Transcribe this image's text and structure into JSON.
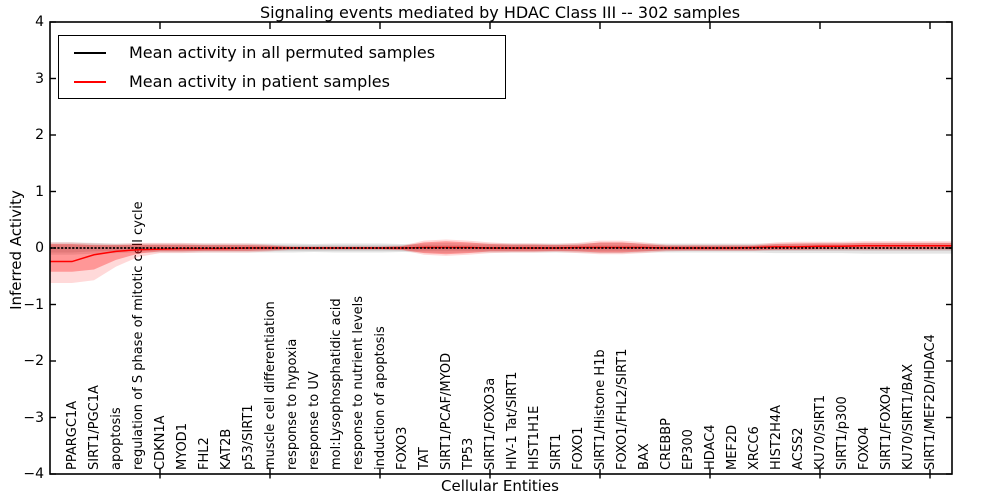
{
  "title": "Signaling events mediated by HDAC Class III -- 302 samples",
  "chart_data": {
    "type": "line",
    "title": "Signaling events mediated by HDAC Class III -- 302 samples",
    "xlabel": "Cellular Entities",
    "ylabel": "Inferred Activity",
    "ylim": [
      -4,
      4
    ],
    "yticks": [
      4,
      3,
      2,
      1,
      0,
      -1,
      -2,
      -3,
      -4
    ],
    "xtick_interval": 5,
    "grid": false,
    "legend_position": "upper left",
    "legend": [
      {
        "label": "Mean activity in all permuted samples",
        "color": "#000000"
      },
      {
        "label": "Mean activity in patient samples",
        "color": "#ff0000"
      }
    ],
    "categories": [
      "PPARGC1A",
      "SIRT1/PGC1A",
      "apoptosis",
      "regulation of S phase of mitotic cell cycle",
      "CDKN1A",
      "MYOD1",
      "FHL2",
      "KAT2B",
      "p53/SIRT1",
      "muscle cell differentiation",
      "response to hypoxia",
      "response to UV",
      "mol:Lysophosphatidic acid",
      "response to nutrient levels",
      "induction of apoptosis",
      "FOXO3",
      "TAT",
      "SIRT1/PCAF/MYOD",
      "TP53",
      "SIRT1/FOXO3a",
      "HIV-1 Tat/SIRT1",
      "HIST1H1E",
      "SIRT1",
      "FOXO1",
      "SIRT1/Histone H1b",
      "FOXO1/FHL2/SIRT1",
      "BAX",
      "CREBBP",
      "EP300",
      "HDAC4",
      "MEF2D",
      "XRCC6",
      "HIST2H4A",
      "ACSS2",
      "KU70/SIRT1",
      "SIRT1/p300",
      "FOXO4",
      "SIRT1/FOXO4",
      "KU70/SIRT1/BAX",
      "SIRT1/MEF2D/HDAC4"
    ],
    "series": [
      {
        "name": "Mean activity in all permuted samples",
        "color": "#000000",
        "style": "dense-markers",
        "values": [
          0,
          0,
          0,
          0,
          0,
          0,
          0,
          0,
          0,
          0,
          0,
          0,
          0,
          0,
          0,
          0,
          0,
          0,
          0,
          0,
          0,
          0,
          0,
          0,
          0,
          0,
          0,
          0,
          0,
          0,
          0,
          0,
          0,
          0,
          0,
          0,
          0,
          0,
          0,
          0
        ]
      },
      {
        "name": "Mean activity in patient samples",
        "color": "#ff0000",
        "style": "solid",
        "values": [
          -0.24,
          -0.12,
          -0.06,
          -0.03,
          -0.02,
          -0.01,
          -0.01,
          -0.01,
          0,
          0,
          0,
          0,
          0,
          0,
          0,
          0,
          0.01,
          0.01,
          0.01,
          0,
          0,
          0,
          0,
          0.01,
          0.01,
          0.01,
          0.01,
          0,
          0,
          0,
          0,
          0.01,
          0.02,
          0.02,
          0.03,
          0.03,
          0.04,
          0.04,
          0.04,
          0.04
        ]
      }
    ],
    "bands": [
      {
        "name": "permuted-band-outer",
        "color": "rgba(90,90,90,0.16)",
        "top": [
          0.1,
          0.09,
          0.08,
          0.08,
          0.08,
          0.08,
          0.08,
          0.08,
          0.08,
          0.08,
          0.08,
          0.07,
          0.08,
          0.08,
          0.08,
          0.07,
          0.08,
          0.09,
          0.08,
          0.08,
          0.08,
          0.08,
          0.08,
          0.08,
          0.09,
          0.09,
          0.08,
          0.08,
          0.08,
          0.08,
          0.08,
          0.08,
          0.08,
          0.08,
          0.09,
          0.09,
          0.09,
          0.09,
          0.09,
          0.09
        ],
        "bottom": [
          -0.12,
          -0.1,
          -0.09,
          -0.08,
          -0.08,
          -0.08,
          -0.08,
          -0.08,
          -0.08,
          -0.08,
          -0.08,
          -0.07,
          -0.08,
          -0.08,
          -0.08,
          -0.07,
          -0.08,
          -0.09,
          -0.08,
          -0.08,
          -0.08,
          -0.08,
          -0.08,
          -0.08,
          -0.09,
          -0.09,
          -0.08,
          -0.08,
          -0.08,
          -0.08,
          -0.08,
          -0.08,
          -0.09,
          -0.09,
          -0.09,
          -0.09,
          -0.1,
          -0.1,
          -0.1,
          -0.1
        ]
      },
      {
        "name": "permuted-band-inner",
        "color": "rgba(90,90,90,0.16)",
        "top": [
          0.06,
          0.06,
          0.05,
          0.05,
          0.05,
          0.05,
          0.05,
          0.05,
          0.05,
          0.05,
          0.05,
          0.05,
          0.05,
          0.05,
          0.05,
          0.05,
          0.05,
          0.05,
          0.05,
          0.05,
          0.05,
          0.05,
          0.05,
          0.05,
          0.05,
          0.05,
          0.05,
          0.05,
          0.05,
          0.05,
          0.05,
          0.05,
          0.05,
          0.05,
          0.05,
          0.05,
          0.05,
          0.05,
          0.05,
          0.05
        ],
        "bottom": [
          -0.08,
          -0.06,
          -0.05,
          -0.05,
          -0.05,
          -0.05,
          -0.05,
          -0.05,
          -0.05,
          -0.05,
          -0.05,
          -0.05,
          -0.05,
          -0.05,
          -0.05,
          -0.05,
          -0.05,
          -0.05,
          -0.05,
          -0.05,
          -0.05,
          -0.05,
          -0.05,
          -0.05,
          -0.05,
          -0.05,
          -0.05,
          -0.05,
          -0.05,
          -0.05,
          -0.05,
          -0.05,
          -0.05,
          -0.05,
          -0.05,
          -0.05,
          -0.05,
          -0.05,
          -0.05,
          -0.05
        ]
      },
      {
        "name": "patient-band-outer",
        "color": "rgba(255,0,0,0.15)",
        "top": [
          0.1,
          0.08,
          0.07,
          0.09,
          0.09,
          0.09,
          0.08,
          0.08,
          0.08,
          0.06,
          0.03,
          0.03,
          0.03,
          0.03,
          0.03,
          0.04,
          0.13,
          0.15,
          0.13,
          0.1,
          0.08,
          0.08,
          0.07,
          0.09,
          0.13,
          0.13,
          0.1,
          0.06,
          0.06,
          0.06,
          0.06,
          0.06,
          0.1,
          0.11,
          0.11,
          0.11,
          0.12,
          0.12,
          0.12,
          0.12
        ],
        "bottom": [
          -0.62,
          -0.57,
          -0.33,
          -0.16,
          -0.09,
          -0.09,
          -0.08,
          -0.08,
          -0.08,
          -0.06,
          -0.03,
          -0.03,
          -0.03,
          -0.03,
          -0.03,
          -0.04,
          -0.12,
          -0.14,
          -0.12,
          -0.09,
          -0.08,
          -0.08,
          -0.07,
          -0.09,
          -0.11,
          -0.11,
          -0.09,
          -0.06,
          -0.05,
          -0.05,
          -0.05,
          -0.05,
          -0.04,
          -0.04,
          -0.04,
          -0.04,
          -0.04,
          -0.04,
          -0.04,
          -0.04
        ]
      },
      {
        "name": "patient-band-inner",
        "color": "rgba(255,0,0,0.30)",
        "top": [
          0.07,
          0.05,
          0.05,
          0.06,
          0.06,
          0.06,
          0.05,
          0.05,
          0.05,
          0.04,
          0.02,
          0.02,
          0.02,
          0.02,
          0.02,
          0.03,
          0.1,
          0.12,
          0.1,
          0.07,
          0.06,
          0.06,
          0.05,
          0.06,
          0.1,
          0.1,
          0.07,
          0.04,
          0.04,
          0.04,
          0.04,
          0.04,
          0.07,
          0.08,
          0.08,
          0.08,
          0.09,
          0.09,
          0.09,
          0.09
        ],
        "bottom": [
          -0.42,
          -0.38,
          -0.21,
          -0.1,
          -0.06,
          -0.06,
          -0.05,
          -0.05,
          -0.05,
          -0.04,
          -0.02,
          -0.02,
          -0.02,
          -0.02,
          -0.02,
          -0.03,
          -0.09,
          -0.11,
          -0.09,
          -0.06,
          -0.06,
          -0.06,
          -0.05,
          -0.06,
          -0.08,
          -0.08,
          -0.06,
          -0.04,
          -0.04,
          -0.04,
          -0.04,
          -0.04,
          -0.03,
          -0.03,
          -0.02,
          -0.02,
          -0.02,
          -0.02,
          -0.02,
          -0.02
        ]
      }
    ]
  }
}
